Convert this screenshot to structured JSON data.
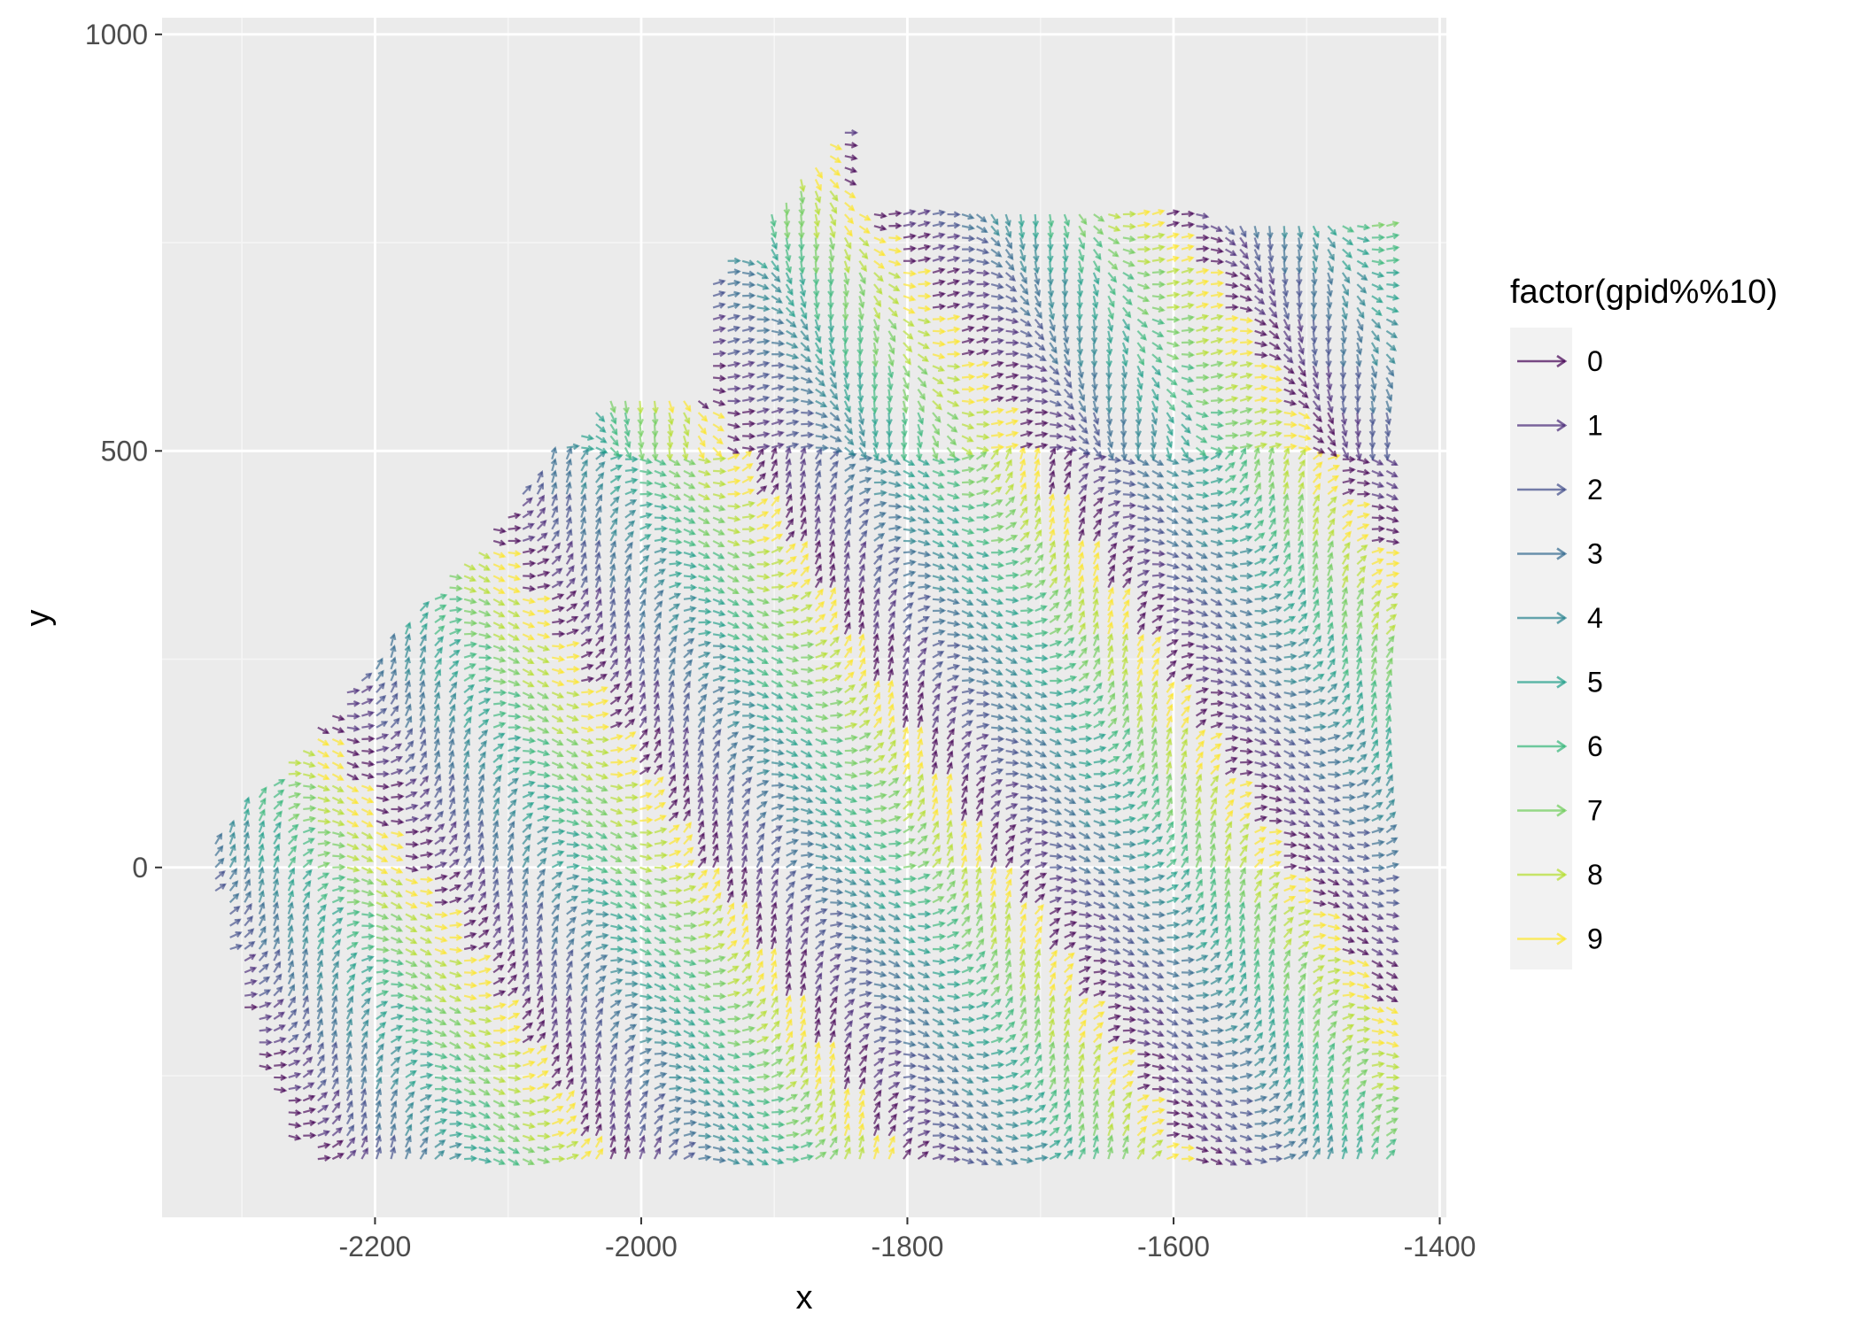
{
  "chart_data": {
    "type": "vector-field",
    "xlabel": "x",
    "ylabel": "y",
    "xlim": [
      -2360,
      -1395
    ],
    "ylim": [
      -420,
      1020
    ],
    "x_ticks": [
      -2200,
      -2000,
      -1800,
      -1600,
      -1400
    ],
    "y_ticks": [
      0,
      500,
      1000
    ],
    "x_tick_labels": [
      "-2200",
      "-2000",
      "-1800",
      "-1600",
      "-1400"
    ],
    "y_tick_labels": [
      "0",
      "500",
      "1000"
    ],
    "grid": true,
    "legend": {
      "title": "factor(gpid%%10)",
      "placement": "right",
      "labels": [
        "0",
        "1",
        "2",
        "3",
        "4",
        "5",
        "6",
        "7",
        "8",
        "9"
      ],
      "colors": [
        "#440154",
        "#482878",
        "#3E4A89",
        "#31688E",
        "#26828E",
        "#1F9E89",
        "#35B779",
        "#6DCD59",
        "#B4DE2C",
        "#FDE725"
      ]
    },
    "colors": {
      "panel_background": "#EBEBEB",
      "grid_major": "#FFFFFF",
      "grid_minor": "#F5F5F5"
    },
    "region_x_range": [
      -2320,
      -1440
    ],
    "region_y_range": [
      -350,
      950
    ]
  }
}
